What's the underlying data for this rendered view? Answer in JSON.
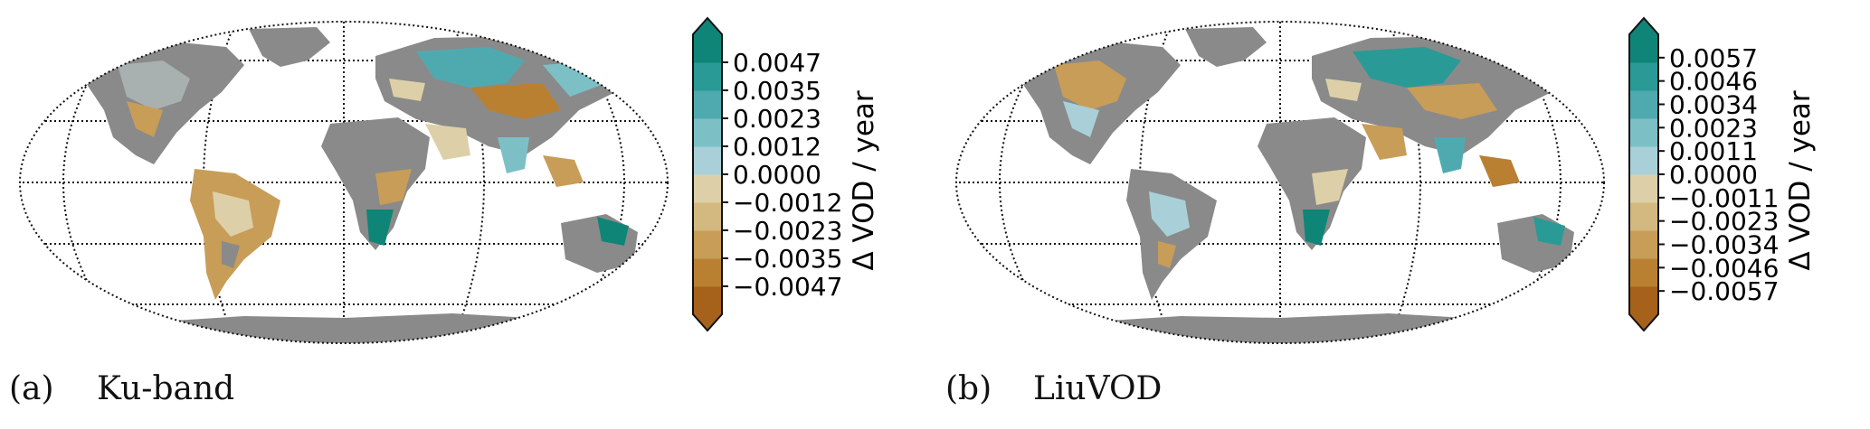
{
  "panels": [
    {
      "letter": "(a)",
      "name": "Ku-band",
      "colorbar_label": "Δ VOD / year",
      "colorbar_ticks": [
        "0.0047",
        "0.0035",
        "0.0023",
        "0.0012",
        "0.0000",
        "−0.0012",
        "−0.0023",
        "−0.0035",
        "−0.0047"
      ]
    },
    {
      "letter": "(b)",
      "name": "LiuVOD",
      "colorbar_label": "Δ VOD / year",
      "colorbar_ticks": [
        "0.0057",
        "0.0046",
        "0.0034",
        "0.0023",
        "0.0011",
        "0.0000",
        "−0.0011",
        "−0.0023",
        "−0.0034",
        "−0.0046",
        "−0.0057"
      ]
    }
  ],
  "colors": {
    "land_nodata": "#8a8a8a",
    "colormap": [
      "#a6611a",
      "#b98032",
      "#c89d58",
      "#d3b880",
      "#ddd0a8",
      "#a9d0d8",
      "#7cc0c6",
      "#4faab0",
      "#2a9a96",
      "#0f8577"
    ]
  }
}
